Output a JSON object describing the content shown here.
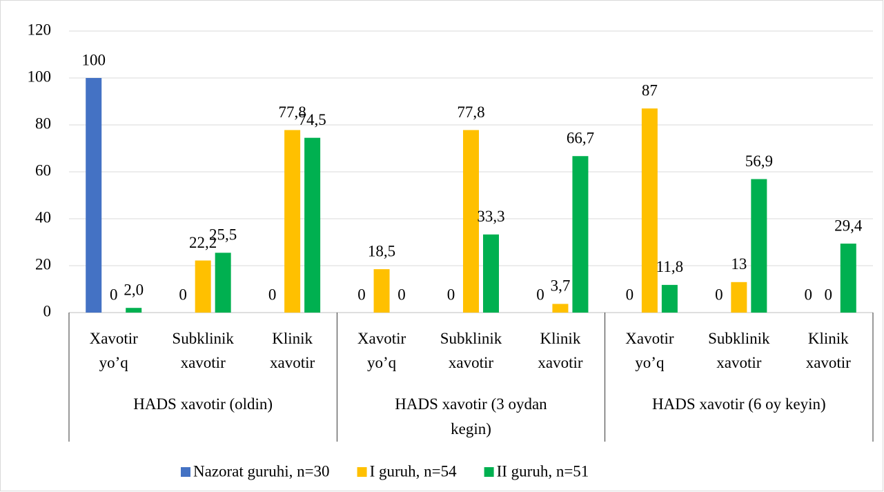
{
  "chart_data": {
    "type": "bar",
    "groups": [
      [
        "HADS xavotir (oldin)"
      ],
      [
        "HADS xavotir (3 oydan",
        "kegin)"
      ],
      [
        "HADS xavotir (6 oy keyin)"
      ]
    ],
    "categories": [
      [
        "Xavotir",
        "yo’q"
      ],
      [
        "Subklinik",
        "xavotir"
      ],
      [
        "Klinik",
        "xavotir"
      ],
      [
        "Xavotir",
        "yo’q"
      ],
      [
        "Subklinik",
        "xavotir"
      ],
      [
        "Klinik",
        "xavotir"
      ],
      [
        "Xavotir",
        "yo’q"
      ],
      [
        "Subklinik",
        "xavotir"
      ],
      [
        "Klinik",
        "xavotir"
      ]
    ],
    "series": [
      {
        "name": "Nazorat guruhi, n=30",
        "color": "#4472c4",
        "values": [
          100,
          0,
          0,
          0,
          0,
          0,
          0,
          0,
          0
        ],
        "value_labels": [
          "100",
          "0",
          "0",
          "0",
          "0",
          "0",
          "0",
          "0",
          "0"
        ]
      },
      {
        "name": "I guruh, n=54",
        "color": "#ffc000",
        "values": [
          0,
          22.2,
          77.8,
          18.5,
          77.8,
          3.7,
          87,
          13,
          0
        ],
        "value_labels": [
          "0",
          "22,2",
          "77,8",
          "18,5",
          "77,8",
          "3,7",
          "87",
          "13",
          "0"
        ]
      },
      {
        "name": "II guruh, n=51",
        "color": "#00b050",
        "values": [
          2.0,
          25.5,
          74.5,
          0,
          33.3,
          66.7,
          11.8,
          56.9,
          29.4
        ],
        "value_labels": [
          "2,0",
          "25,5",
          "74,5",
          "0",
          "33,3",
          "66,7",
          "11,8",
          "56,9",
          "29,4"
        ]
      }
    ],
    "ylim": [
      0,
      120
    ],
    "yticks": [
      0,
      20,
      40,
      60,
      80,
      100,
      120
    ],
    "grid": true,
    "legend": "bottom"
  }
}
